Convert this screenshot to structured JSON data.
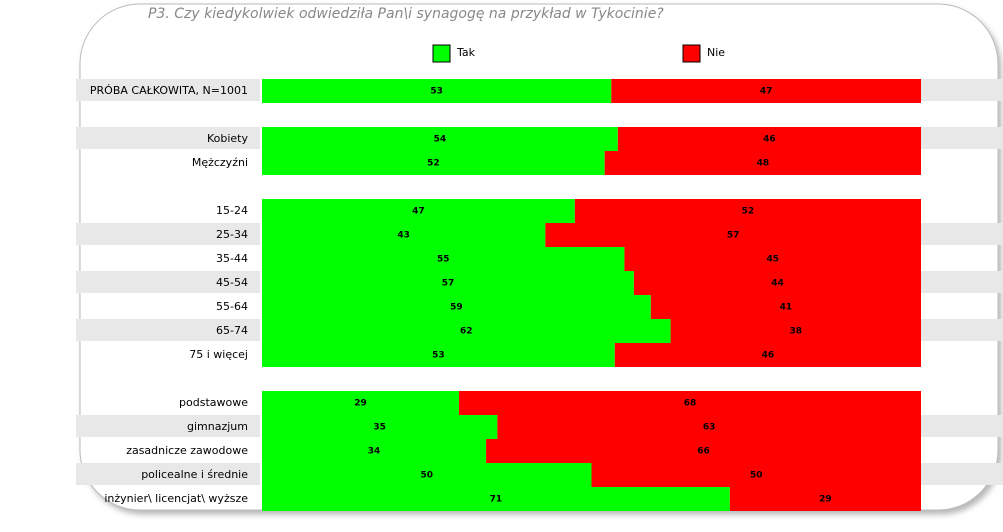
{
  "chart_data": {
    "type": "bar",
    "orientation": "horizontal",
    "stacked": true,
    "title": "P3. Czy kiedykolwiek odwiedziła Pan\\i synagogę na przykład w Tykocinie?",
    "categories": [
      "PRÓBA CAŁKOWITA, N=1001",
      null,
      "Kobiety",
      "Mężczyźni",
      null,
      "15-24",
      "25-34",
      "35-44",
      "45-54",
      "55-64",
      "65-74",
      "75 i więcej",
      null,
      "podstawowe",
      "gimnazjum",
      "zasadnicze zawodowe",
      "policealne i średnie",
      "inżynier\\ licencjat\\ wyższe"
    ],
    "series": [
      {
        "name": "Tak",
        "color": "#00ff00",
        "values": [
          53,
          null,
          54,
          52,
          null,
          47,
          43,
          55,
          57,
          59,
          62,
          53,
          null,
          29,
          35,
          34,
          50,
          71
        ]
      },
      {
        "name": "Nie",
        "color": "#ff0000",
        "values": [
          47,
          null,
          46,
          48,
          null,
          52,
          57,
          45,
          44,
          41,
          38,
          46,
          null,
          68,
          63,
          66,
          50,
          29
        ]
      }
    ]
  }
}
